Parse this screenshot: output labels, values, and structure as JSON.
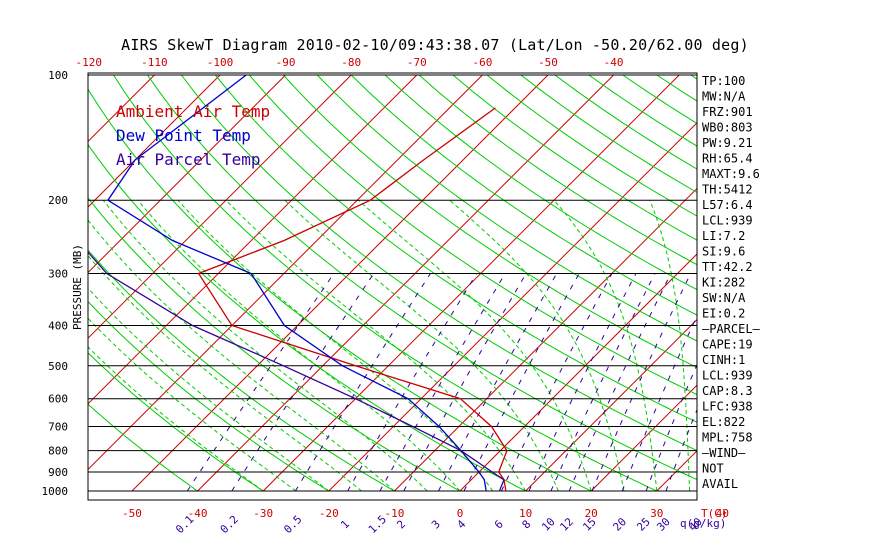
{
  "title": "AIRS SkewT Diagram 2010-02-10/09:43:38.07 (Lat/Lon -50.20/62.00 deg)",
  "ylabel": "PRESSURE (MB)",
  "t_unit": "T(C)",
  "q_unit": "q(g/kg)",
  "colors": {
    "temp": "#cc0000",
    "dew": "#0000cc",
    "parcel": "#330099",
    "isotherm": "#cc0000",
    "dry_adiabat": "#00cc00",
    "moist_adiabat": "#00cc00",
    "mixing_ratio": "#330099",
    "isobar": "#000000"
  },
  "legend": [
    "Ambient Air Temp",
    "Dew Point Temp",
    "Air Parcel Temp"
  ],
  "pressure_ticks": [
    "100",
    "200",
    "300",
    "400",
    "500",
    "600",
    "700",
    "800",
    "900",
    "1000"
  ],
  "top_temp_ticks": [
    "-120",
    "-110",
    "-100",
    "-90",
    "-80",
    "-70",
    "-60",
    "-50",
    "-40"
  ],
  "bottom_temp_ticks": [
    "-50",
    "-40",
    "-30",
    "-20",
    "-10",
    "0",
    "10",
    "20",
    "30",
    "40"
  ],
  "mixing_ratio_labels": [
    "0.1",
    "0.2",
    "0.5",
    "1",
    "1.5",
    "2",
    "3",
    "4",
    "6",
    "8",
    "10",
    "12",
    "15",
    "20",
    "25",
    "30",
    "40"
  ],
  "indices": [
    "TP:100",
    "MW:N/A",
    "FRZ:901",
    "WB0:803",
    "PW:9.21",
    "RH:65.4",
    "MAXT:9.6",
    "TH:5412",
    "L57:6.4",
    "LCL:939",
    "LI:7.2",
    "SI:9.6",
    "TT:42.2",
    "KI:282",
    "SW:N/A",
    "EI:0.2",
    "—PARCEL—",
    "CAPE:19",
    "CINH:1",
    "LCL:939",
    "CAP:8.3",
    "LFC:938",
    "EL:822",
    "MPL:758",
    "—WIND—",
    "NOT",
    "AVAIL"
  ],
  "chart_data": {
    "type": "line",
    "x_unit": "deg C",
    "y_unit": "mb",
    "ylim": [
      1000,
      100
    ],
    "y_scale": "log",
    "xlim_at_1000mb": [
      -50,
      45
    ],
    "series": [
      {
        "name": "Ambient Air Temp",
        "points": [
          [
            -53,
            120
          ],
          [
            -56,
            160
          ],
          [
            -58,
            200
          ],
          [
            -65,
            250
          ],
          [
            -73,
            300
          ],
          [
            -60,
            400
          ],
          [
            -35,
            500
          ],
          [
            -14,
            600
          ],
          [
            -5,
            700
          ],
          [
            1,
            800
          ],
          [
            3,
            900
          ],
          [
            5,
            940
          ],
          [
            7,
            1000
          ]
        ]
      },
      {
        "name": "Dew Point Temp",
        "points": [
          [
            -96,
            100
          ],
          [
            -100,
            160
          ],
          [
            -98,
            200
          ],
          [
            -82,
            250
          ],
          [
            -65,
            300
          ],
          [
            -52,
            400
          ],
          [
            -37,
            500
          ],
          [
            -22,
            600
          ],
          [
            -13,
            700
          ],
          [
            -6,
            800
          ],
          [
            0,
            900
          ],
          [
            2,
            940
          ],
          [
            4,
            1000
          ]
        ]
      },
      {
        "name": "Air Parcel Temp",
        "points": [
          [
            -128,
            100
          ],
          [
            -118,
            150
          ],
          [
            -108,
            200
          ],
          [
            -87,
            300
          ],
          [
            -66,
            400
          ],
          [
            -46,
            500
          ],
          [
            -30,
            600
          ],
          [
            -17,
            700
          ],
          [
            -6,
            800
          ],
          [
            2,
            900
          ],
          [
            5,
            940
          ],
          [
            6,
            1000
          ]
        ]
      }
    ]
  }
}
